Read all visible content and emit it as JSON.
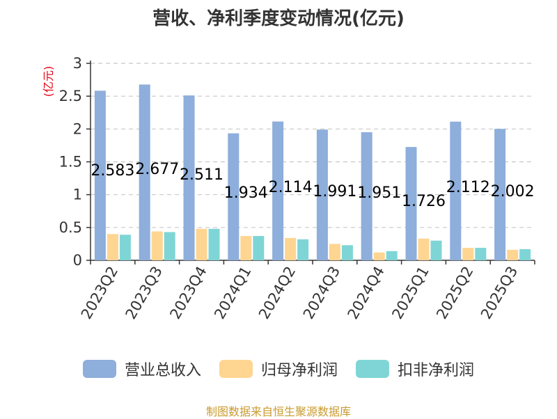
{
  "title": "营收、净利季度变动情况(亿元)",
  "source_text": "制图数据来自恒生聚源数据库",
  "colors": {
    "revenue": "#8eaedb",
    "net_profit": "#ffd592",
    "deducted_net_profit": "#7fd5d6",
    "unit_label": "#e60012",
    "source_label": "#c99a2e",
    "axis": "#333333",
    "grid": "#c8c8c8"
  },
  "chart_data": {
    "type": "bar",
    "title": "营收、净利季度变动情况(亿元)",
    "ylabel": "(亿元)",
    "xlabel": "",
    "ylim": [
      0,
      3
    ],
    "yticks": [
      "0",
      "0.5",
      "1",
      "1.5",
      "2",
      "2.5",
      "3"
    ],
    "grid": true,
    "legend_position": "bottom",
    "categories": [
      "2023Q2",
      "2023Q3",
      "2023Q4",
      "2024Q1",
      "2024Q2",
      "2024Q3",
      "2024Q4",
      "2025Q1",
      "2025Q2",
      "2025Q3"
    ],
    "series": [
      {
        "name": "营业总收入",
        "values": [
          2.583,
          2.677,
          2.511,
          1.934,
          2.114,
          1.991,
          1.951,
          1.726,
          2.112,
          2.002
        ],
        "labels": [
          "2.583",
          "2.677",
          "2.511",
          "1.934",
          "2.114",
          "1.991",
          "1.951",
          "1.726",
          "2.112",
          "2.002"
        ]
      },
      {
        "name": "归母净利润",
        "values": [
          0.4,
          0.44,
          0.48,
          0.37,
          0.34,
          0.25,
          0.12,
          0.33,
          0.19,
          0.16
        ]
      },
      {
        "name": "扣非净利润",
        "values": [
          0.39,
          0.43,
          0.48,
          0.37,
          0.32,
          0.23,
          0.14,
          0.3,
          0.19,
          0.17
        ]
      }
    ]
  }
}
